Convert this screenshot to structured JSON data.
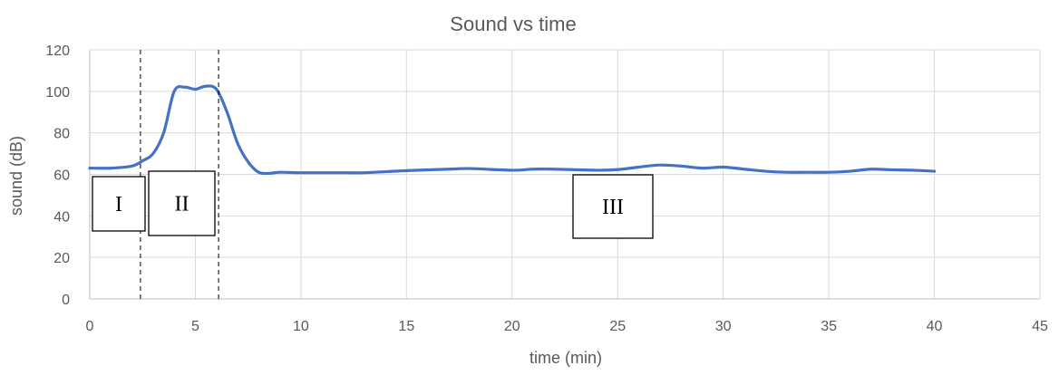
{
  "chart_data": {
    "type": "line",
    "title": "Sound vs time",
    "xlabel": "time (min)",
    "ylabel": "sound (dB)",
    "xlim": [
      0,
      45
    ],
    "ylim": [
      0,
      120
    ],
    "xticks": [
      0,
      5,
      10,
      15,
      20,
      25,
      30,
      35,
      40,
      45
    ],
    "yticks": [
      0,
      20,
      40,
      60,
      80,
      100,
      120
    ],
    "grid": true,
    "series": [
      {
        "color": "#4472c4",
        "x": [
          0,
          1,
          2,
          2.5,
          3,
          3.5,
          4,
          4.5,
          5,
          5.5,
          6,
          6.5,
          7,
          7.5,
          8,
          8.5,
          9,
          10,
          12,
          13,
          15,
          17,
          18,
          20,
          21,
          22,
          24,
          25,
          26,
          27,
          28,
          29,
          30,
          31,
          32,
          33,
          34,
          35,
          36,
          37,
          38,
          39,
          40
        ],
        "y": [
          63,
          63,
          64,
          66.5,
          70,
          80,
          100,
          102,
          101,
          102.5,
          101,
          90,
          75,
          66,
          61,
          60.5,
          61,
          60.8,
          60.8,
          60.8,
          61.8,
          62.5,
          62.8,
          62,
          62.5,
          62.5,
          62,
          62.3,
          63.5,
          64.5,
          64,
          63,
          63.5,
          62.5,
          61.5,
          61,
          61,
          61,
          61.5,
          62.5,
          62.2,
          62,
          61.5
        ]
      }
    ],
    "boundaries_x": [
      2.4,
      6.1
    ],
    "regions": [
      {
        "label": "I"
      },
      {
        "label": "II"
      },
      {
        "label": "III"
      }
    ]
  }
}
